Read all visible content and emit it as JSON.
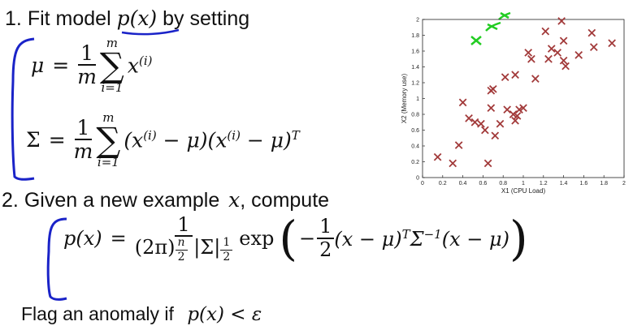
{
  "step1": {
    "number": "1.",
    "label": "Fit model",
    "model": "p(x)",
    "suffix": "by setting"
  },
  "mu_eq": {
    "lhs": "μ",
    "eq": "=",
    "num": "1",
    "den": "m",
    "sum_top": "m",
    "sum_bottom": "i=1",
    "sum_sym": "∑",
    "term_base": "x",
    "term_sup": "(i)"
  },
  "sigma_eq": {
    "lhs": "Σ",
    "eq": "=",
    "num": "1",
    "den": "m",
    "sum_top": "m",
    "sum_bottom": "i=1",
    "sum_sym": "∑",
    "term1": "(x",
    "sup1": "(i)",
    "term2": " − μ)(x",
    "sup2": "(i)",
    "term3": " − μ)",
    "sup3": "T"
  },
  "step2": {
    "number": "2.",
    "label": "Given a new example",
    "var": "x",
    "suffix": ", compute"
  },
  "p_eq": {
    "lhs": "p(x)",
    "eq": "=",
    "num": "1",
    "den_a": "(2π)",
    "den_a_sup_num": "n",
    "den_a_sup_den": "2",
    "den_b": "|Σ|",
    "den_b_sup_num": "1",
    "den_b_sup_den": "2",
    "exp": "exp",
    "lparen": "(",
    "rparen": ")",
    "neg": "−",
    "half_num": "1",
    "half_den": "2",
    "body1": "(x − μ)",
    "body_sup_T": "T",
    "body2": "Σ",
    "body_sup_inv": "−1",
    "body3": "(x − μ)"
  },
  "step3": {
    "label": "Flag an anomaly if",
    "condition": "p(x) < ε"
  },
  "colors": {
    "annotation_blue": "#1a23c8",
    "annotation_green": "#22cc22",
    "marker": "#a23a3a",
    "axis": "#222222"
  },
  "chart_data": {
    "type": "scatter",
    "xlabel": "X1 (CPU Load)",
    "ylabel": "X2 (Memory use)",
    "xlim": [
      0,
      2
    ],
    "ylim": [
      0,
      2
    ],
    "xticks": [
      "0",
      "0.2",
      "0.4",
      "0.6",
      "0.8",
      "1",
      "1.2",
      "1.4",
      "1.6",
      "1.8",
      "2"
    ],
    "yticks": [
      "0",
      "0.2",
      "0.4",
      "0.6",
      "0.8",
      "1",
      "1.2",
      "1.4",
      "1.6",
      "1.8",
      "2"
    ],
    "marker": "x",
    "grid": false,
    "points": [
      [
        0.15,
        0.26
      ],
      [
        0.3,
        0.18
      ],
      [
        0.36,
        0.41
      ],
      [
        0.4,
        0.95
      ],
      [
        0.46,
        0.75
      ],
      [
        0.52,
        0.7
      ],
      [
        0.58,
        0.68
      ],
      [
        0.62,
        0.6
      ],
      [
        0.65,
        0.18
      ],
      [
        0.68,
        0.88
      ],
      [
        0.68,
        1.1
      ],
      [
        0.7,
        1.12
      ],
      [
        0.72,
        0.53
      ],
      [
        0.77,
        0.68
      ],
      [
        0.82,
        1.27
      ],
      [
        0.84,
        0.86
      ],
      [
        0.9,
        0.8
      ],
      [
        0.92,
        0.72
      ],
      [
        0.92,
        1.3
      ],
      [
        0.94,
        0.78
      ],
      [
        0.96,
        0.86
      ],
      [
        1.0,
        0.88
      ],
      [
        1.05,
        1.58
      ],
      [
        1.08,
        1.5
      ],
      [
        1.12,
        1.25
      ],
      [
        1.22,
        1.85
      ],
      [
        1.25,
        1.5
      ],
      [
        1.28,
        1.63
      ],
      [
        1.34,
        1.58
      ],
      [
        1.38,
        1.98
      ],
      [
        1.4,
        1.73
      ],
      [
        1.4,
        1.48
      ],
      [
        1.42,
        1.41
      ],
      [
        1.55,
        1.55
      ],
      [
        1.68,
        1.83
      ],
      [
        1.7,
        1.65
      ],
      [
        1.88,
        1.7
      ]
    ]
  }
}
